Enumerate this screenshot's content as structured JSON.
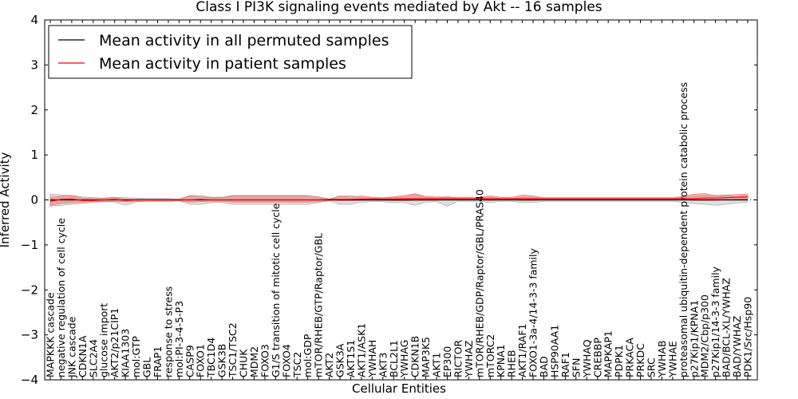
{
  "chart_data": {
    "type": "line",
    "title": "Class I PI3K signaling events mediated by Akt -- 16 samples",
    "xlabel": "Cellular Entities",
    "ylabel": "Inferred Activity",
    "ylim": [
      -4,
      4
    ],
    "yticks": [
      -4,
      -3,
      -2,
      -1,
      0,
      1,
      2,
      3,
      4
    ],
    "ytick_labels": [
      "−4",
      "−3",
      "−2",
      "−1",
      "0",
      "1",
      "2",
      "3",
      "4"
    ],
    "legend": {
      "placement": "top-left",
      "entries": [
        {
          "label": "Mean activity in all permuted samples",
          "color": "#000000"
        },
        {
          "label": "Mean activity in patient samples",
          "color": "#ff0000"
        }
      ]
    },
    "categories": [
      "MAPKKK cascade",
      "negative regulation of cell cycle",
      "JNK cascade",
      "CDKN1A",
      "SLC2A4",
      "glucose import",
      "AKT2/p21CIP1",
      "KIAA1303",
      "mol:GTP",
      "GBL",
      "FRAP1",
      "response to stress",
      "mol:PI-3-4-5-P3",
      "CASP9",
      "FOXO1",
      "TBC1D4",
      "GSK3B",
      "TSC1/TSC2",
      "CHUK",
      "MDM2",
      "FOXO3",
      "G1/S transition of mitotic cell cycle",
      "FOXO4",
      "TSC2",
      "mol:GDP",
      "mTOR/RHEB/GTP/Raptor/GBL",
      "AKT2",
      "GSK3A",
      "AKT1S1",
      "AKT1/ASK1",
      "YWHAH",
      "AKT3",
      "BCL2L1",
      "YWHAG",
      "CDKN1B",
      "MAP3K5",
      "AKT1",
      "EP300",
      "RICTOR",
      "YWHAZ",
      "mTOR/RHEB/GDP/Raptor/GBL/PRAS40",
      "mTORC2",
      "KPNA1",
      "RHEB",
      "AKT1/RAF1",
      "FOXO1-3a-4/14-3-3 family",
      "BAD",
      "HSP90AA1",
      "RAF1",
      "SFN",
      "YWHAQ",
      "CREBBP",
      "MAPKAP1",
      "PDPK1",
      "PRKACA",
      "PRKDC",
      "SRC",
      "YWHAB",
      "YWHAE",
      "proteasomal ubiquitin-dependent protein catabolic process",
      "p27Kip1/KPNA1",
      "MDM2/Cbp/p300",
      "p27Kip1/14-3-3 family",
      "BAD/BCL-XL/YWHAZ",
      "BAD/YWHAZ",
      "PDK1/Src/Hsp90"
    ],
    "series": [
      {
        "name": "Mean activity in patient samples",
        "color": "#ff0000",
        "values": [
          -0.03,
          0.01,
          0.02,
          -0.01,
          -0.01,
          0.0,
          0.01,
          -0.01,
          0.0,
          0.0,
          0.0,
          0.0,
          0.0,
          0.0,
          0.01,
          0.0,
          0.0,
          0.0,
          0.0,
          0.0,
          0.0,
          0.0,
          0.0,
          0.0,
          0.0,
          0.0,
          0.01,
          0.01,
          0.01,
          0.02,
          0.02,
          0.02,
          0.02,
          0.03,
          0.03,
          0.03,
          0.03,
          0.03,
          0.03,
          0.03,
          0.03,
          0.03,
          0.03,
          0.03,
          0.03,
          0.03,
          0.03,
          0.03,
          0.03,
          0.03,
          0.03,
          0.03,
          0.03,
          0.03,
          0.03,
          0.03,
          0.03,
          0.03,
          0.03,
          0.03,
          0.03,
          0.04,
          0.04,
          0.05,
          0.06,
          0.07
        ],
        "band_lower": [
          -0.12,
          -0.08,
          -0.06,
          -0.05,
          -0.04,
          -0.03,
          -0.03,
          -0.04,
          -0.03,
          -0.03,
          -0.03,
          -0.03,
          -0.02,
          -0.05,
          -0.04,
          -0.03,
          -0.03,
          -0.05,
          -0.05,
          -0.05,
          -0.05,
          -0.05,
          -0.05,
          -0.05,
          -0.05,
          -0.04,
          -0.01,
          -0.02,
          -0.02,
          -0.01,
          -0.01,
          -0.01,
          -0.02,
          -0.02,
          -0.01,
          -0.01,
          -0.01,
          0.0,
          0.0,
          0.0,
          0.0,
          -0.01,
          0.0,
          0.0,
          -0.01,
          -0.01,
          0.0,
          0.0,
          0.0,
          0.0,
          0.0,
          0.0,
          0.0,
          0.0,
          0.0,
          0.0,
          0.0,
          0.0,
          0.0,
          0.0,
          -0.01,
          -0.01,
          -0.01,
          0.0,
          0.01,
          0.02
        ],
        "band_upper": [
          0.06,
          0.08,
          0.09,
          0.04,
          0.03,
          0.04,
          0.05,
          0.02,
          0.02,
          0.02,
          0.02,
          0.02,
          0.02,
          0.09,
          0.07,
          0.05,
          0.05,
          0.09,
          0.09,
          0.09,
          0.09,
          0.09,
          0.09,
          0.09,
          0.09,
          0.07,
          0.02,
          0.09,
          0.06,
          0.09,
          0.06,
          0.05,
          0.07,
          0.1,
          0.14,
          0.08,
          0.07,
          0.06,
          0.06,
          0.06,
          0.06,
          0.09,
          0.06,
          0.06,
          0.11,
          0.09,
          0.05,
          0.05,
          0.05,
          0.05,
          0.05,
          0.05,
          0.05,
          0.05,
          0.05,
          0.05,
          0.05,
          0.05,
          0.05,
          0.08,
          0.13,
          0.14,
          0.1,
          0.11,
          0.12,
          0.13
        ]
      },
      {
        "name": "Mean activity in all permuted samples",
        "color": "#000000",
        "values": [
          0.0,
          0.0,
          0.0,
          0.0,
          0.0,
          0.0,
          0.0,
          0.0,
          0.0,
          0.0,
          0.0,
          0.0,
          0.0,
          0.0,
          0.0,
          0.0,
          0.0,
          0.0,
          0.0,
          0.0,
          0.0,
          0.0,
          0.0,
          0.0,
          0.0,
          0.0,
          0.0,
          0.0,
          0.0,
          0.0,
          0.0,
          0.0,
          0.0,
          0.0,
          0.0,
          0.0,
          0.0,
          0.0,
          0.0,
          0.0,
          0.0,
          0.0,
          0.0,
          0.0,
          0.0,
          0.0,
          0.0,
          0.0,
          0.0,
          0.0,
          0.0,
          0.0,
          0.0,
          0.0,
          0.0,
          0.0,
          0.0,
          0.0,
          0.0,
          0.0,
          0.0,
          0.0,
          0.0,
          0.0,
          0.0,
          0.0
        ],
        "band_lower": [
          -0.14,
          -0.12,
          -0.1,
          -0.08,
          -0.05,
          -0.04,
          -0.05,
          -0.12,
          -0.04,
          -0.03,
          -0.03,
          -0.03,
          -0.02,
          -0.1,
          -0.1,
          -0.06,
          -0.06,
          -0.1,
          -0.1,
          -0.1,
          -0.1,
          -0.1,
          -0.1,
          -0.1,
          -0.1,
          -0.06,
          -0.02,
          -0.1,
          -0.1,
          -0.05,
          -0.04,
          -0.04,
          -0.06,
          -0.06,
          -0.12,
          -0.05,
          -0.04,
          -0.14,
          -0.03,
          -0.03,
          -0.03,
          -0.06,
          -0.03,
          -0.03,
          -0.06,
          -0.06,
          -0.03,
          -0.03,
          -0.03,
          -0.03,
          -0.03,
          -0.03,
          -0.03,
          -0.03,
          -0.03,
          -0.03,
          -0.03,
          -0.03,
          -0.03,
          -0.06,
          -0.08,
          -0.1,
          -0.12,
          -0.1,
          -0.07,
          -0.05
        ],
        "band_upper": [
          0.13,
          0.11,
          0.1,
          0.07,
          0.05,
          0.04,
          0.06,
          0.05,
          0.04,
          0.03,
          0.03,
          0.03,
          0.02,
          0.1,
          0.1,
          0.06,
          0.06,
          0.1,
          0.1,
          0.1,
          0.1,
          0.1,
          0.1,
          0.1,
          0.1,
          0.06,
          0.02,
          0.08,
          0.1,
          0.05,
          0.04,
          0.04,
          0.06,
          0.06,
          0.12,
          0.05,
          0.04,
          0.08,
          0.03,
          0.03,
          0.03,
          0.06,
          0.03,
          0.03,
          0.06,
          0.06,
          0.03,
          0.03,
          0.03,
          0.03,
          0.03,
          0.03,
          0.03,
          0.03,
          0.03,
          0.03,
          0.03,
          0.03,
          0.03,
          0.06,
          0.08,
          0.1,
          0.08,
          0.1,
          0.06,
          0.04
        ]
      }
    ],
    "reference_line": {
      "y": 0,
      "style": "dotted"
    }
  }
}
